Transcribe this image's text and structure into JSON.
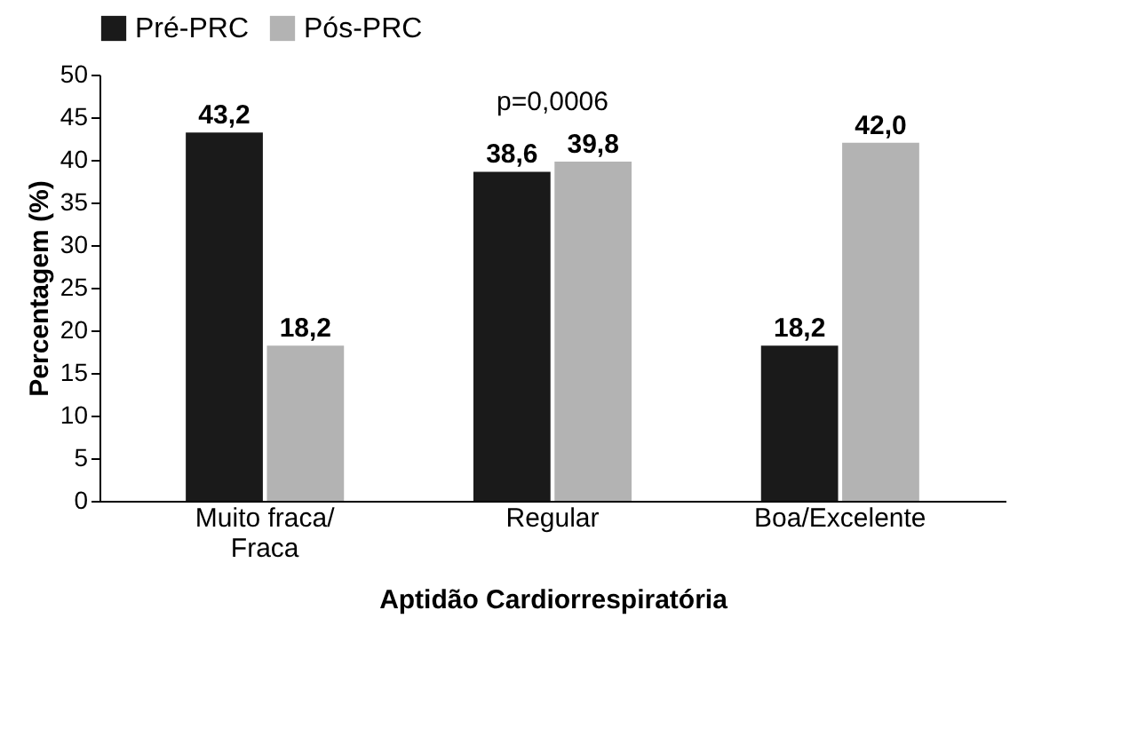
{
  "chart_data": {
    "type": "bar",
    "xlabel": "Aptidão Cardiorrespiratória",
    "ylabel": "Percentagem (%)",
    "categories": [
      "Muito fraca/\nFraca",
      "Regular",
      "Boa/Excelente"
    ],
    "series": [
      {
        "name": "Pré-PRC",
        "color": "#1a1a1a",
        "values": [
          43.2,
          38.6,
          18.2
        ],
        "value_labels": [
          "43,2",
          "38,6",
          "18,2"
        ]
      },
      {
        "name": "Pós-PRC",
        "color": "#b3b3b3",
        "values": [
          18.2,
          39.8,
          42.0
        ],
        "value_labels": [
          "18,2",
          "39,8",
          "42,0"
        ]
      }
    ],
    "ylim": [
      0,
      50
    ],
    "yticks": [
      0,
      5,
      10,
      15,
      20,
      25,
      30,
      35,
      40,
      45,
      50
    ],
    "annotations": [
      "p=0,0006"
    ],
    "legend": "top",
    "grid": false
  }
}
